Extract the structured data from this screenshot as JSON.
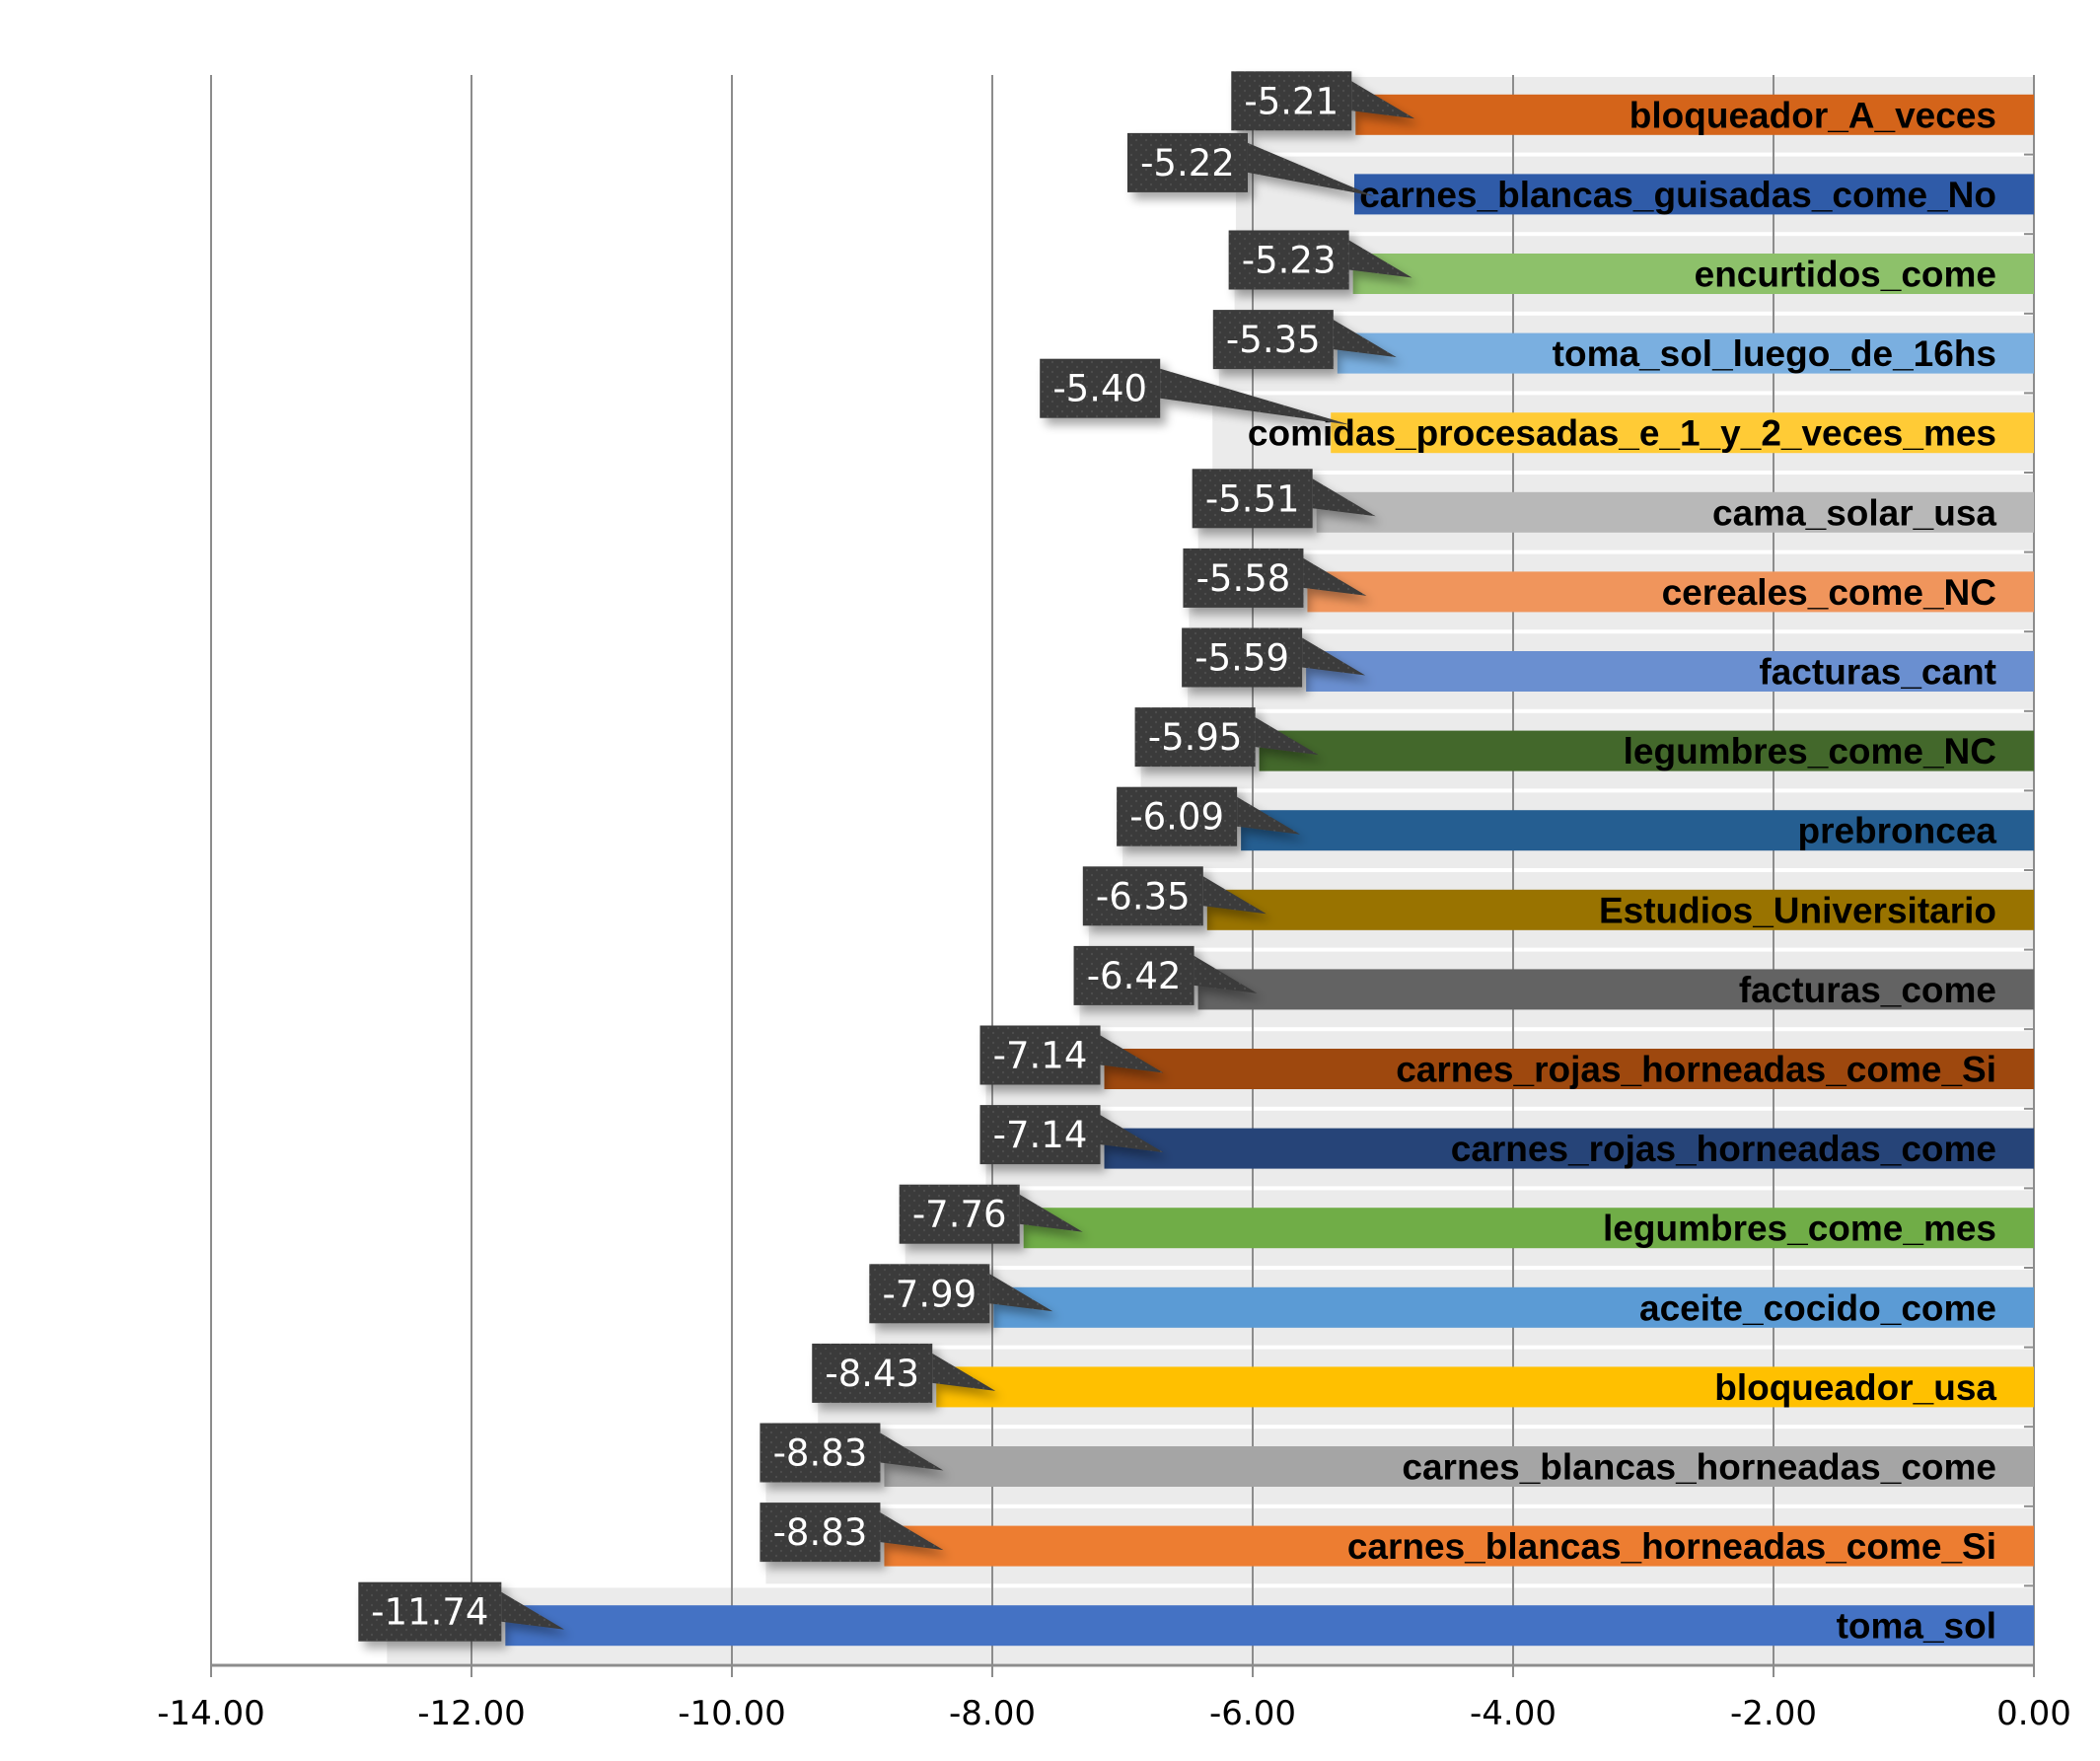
{
  "chart_data": {
    "type": "bar",
    "orientation": "horizontal",
    "title": "",
    "xlabel": "",
    "ylabel": "",
    "xlim": [
      -14,
      0
    ],
    "x_ticks": [
      "-14.00",
      "-12.00",
      "-10.00",
      "-8.00",
      "-6.00",
      "-4.00",
      "-2.00",
      "0.00"
    ],
    "x_tick_values": [
      -14,
      -12,
      -10,
      -8,
      -6,
      -4,
      -2,
      0
    ],
    "grid": true,
    "legend": "none",
    "bars": [
      {
        "category": "bloqueador_A_veces",
        "value": -5.21,
        "label": "-5.21",
        "color": "#d4641a"
      },
      {
        "category": "carnes_blancas_guisadas_come_No",
        "value": -5.22,
        "label": "-5.22",
        "color": "#2f5ba8"
      },
      {
        "category": "encurtidos_come",
        "value": -5.23,
        "label": "-5.23",
        "color": "#8dc16a"
      },
      {
        "category": "toma_sol_luego_de_16hs",
        "value": -5.35,
        "label": "-5.35",
        "color": "#7aafe0"
      },
      {
        "category": "comidas_procesadas_e_1_y_2_veces_mes",
        "value": -5.4,
        "label": "-5.40",
        "color": "#ffcb36"
      },
      {
        "category": "cama_solar_usa",
        "value": -5.51,
        "label": "-5.51",
        "color": "#b8b8b8"
      },
      {
        "category": "cereales_come_NC",
        "value": -5.58,
        "label": "-5.58",
        "color": "#f0955c"
      },
      {
        "category": "facturas_cant",
        "value": -5.59,
        "label": "-5.59",
        "color": "#6a8fd0"
      },
      {
        "category": "legumbres_come_NC",
        "value": -5.95,
        "label": "-5.95",
        "color": "#43682b"
      },
      {
        "category": "prebroncea",
        "value": -6.09,
        "label": "-6.09",
        "color": "#255e91"
      },
      {
        "category": "Estudios_Universitario",
        "value": -6.35,
        "label": "-6.35",
        "color": "#997300"
      },
      {
        "category": "facturas_come",
        "value": -6.42,
        "label": "-6.42",
        "color": "#636363"
      },
      {
        "category": "carnes_rojas_horneadas_come_Si",
        "value": -7.14,
        "label": "-7.14",
        "color": "#9e480e"
      },
      {
        "category": "carnes_rojas_horneadas_come",
        "value": -7.14,
        "label": "-7.14",
        "color": "#264478"
      },
      {
        "category": "legumbres_come_mes",
        "value": -7.76,
        "label": "-7.76",
        "color": "#70ad47"
      },
      {
        "category": "aceite_cocido_come",
        "value": -7.99,
        "label": "-7.99",
        "color": "#5b9bd5"
      },
      {
        "category": "bloqueador_usa",
        "value": -8.43,
        "label": "-8.43",
        "color": "#ffc000"
      },
      {
        "category": "carnes_blancas_horneadas_come",
        "value": -8.83,
        "label": "-8.83",
        "color": "#a5a5a5"
      },
      {
        "category": "carnes_blancas_horneadas_come_Si",
        "value": -8.83,
        "label": "-8.83",
        "color": "#ed7d31"
      },
      {
        "category": "toma_sol",
        "value": -11.74,
        "label": "-11.74",
        "color": "#4472c4"
      }
    ],
    "label_box_color": "#3a3a3a",
    "gridline_color": "#8c8c8c",
    "band_color": "#ebebeb"
  }
}
